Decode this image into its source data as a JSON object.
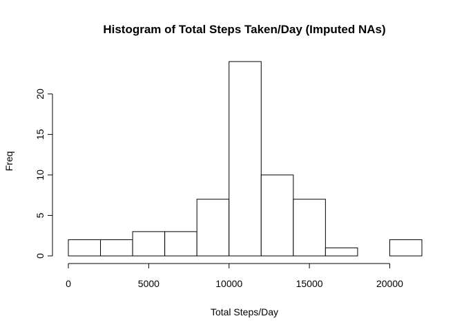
{
  "chart_data": {
    "type": "bar",
    "title": "Histogram of Total Steps Taken/Day (Imputed NAs)",
    "xlabel": "Total Steps/Day",
    "ylabel": "Freq",
    "bins": [
      {
        "start": 0,
        "end": 2000,
        "count": 2
      },
      {
        "start": 2000,
        "end": 4000,
        "count": 2
      },
      {
        "start": 4000,
        "end": 6000,
        "count": 3
      },
      {
        "start": 6000,
        "end": 8000,
        "count": 3
      },
      {
        "start": 8000,
        "end": 10000,
        "count": 7
      },
      {
        "start": 10000,
        "end": 12000,
        "count": 24
      },
      {
        "start": 12000,
        "end": 14000,
        "count": 10
      },
      {
        "start": 14000,
        "end": 16000,
        "count": 7
      },
      {
        "start": 16000,
        "end": 18000,
        "count": 1
      },
      {
        "start": 18000,
        "end": 20000,
        "count": 0
      },
      {
        "start": 20000,
        "end": 22000,
        "count": 2
      }
    ],
    "x_ticks": [
      0,
      5000,
      10000,
      15000,
      20000
    ],
    "y_ticks": [
      0,
      5,
      10,
      15,
      20
    ],
    "xlim": [
      0,
      22000
    ],
    "ylim": [
      0,
      24
    ],
    "grid": false,
    "legend": "none"
  }
}
